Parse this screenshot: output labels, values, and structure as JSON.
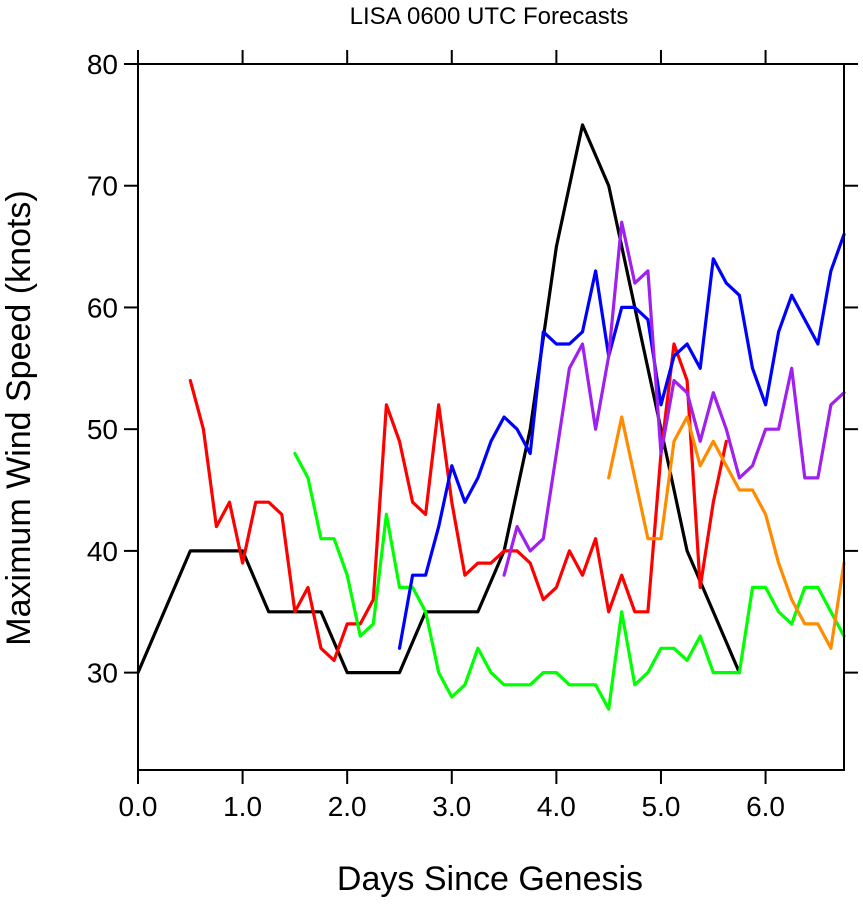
{
  "chart_data": {
    "type": "line",
    "title": "LISA 0600 UTC Forecasts",
    "xlabel": "Days Since Genesis",
    "ylabel": "Maximum Wind Speed (knots)",
    "xlim": [
      0,
      6.75
    ],
    "ylim": [
      22,
      80
    ],
    "xticks": [
      0,
      1,
      2,
      3,
      4,
      5,
      6
    ],
    "xtick_labels": [
      "0.0",
      "1.0",
      "2.0",
      "3.0",
      "4.0",
      "5.0",
      "6.0"
    ],
    "yticks": [
      30,
      40,
      50,
      60,
      70,
      80
    ],
    "ytick_labels": [
      "30",
      "40",
      "50",
      "60",
      "70",
      "80"
    ],
    "grid": false,
    "legend": "none",
    "series": [
      {
        "color": "#000000",
        "points": [
          [
            0,
            30
          ],
          [
            0.5,
            40
          ],
          [
            1,
            40
          ],
          [
            1.25,
            35
          ],
          [
            1.75,
            35
          ],
          [
            2,
            30
          ],
          [
            2.5,
            30
          ],
          [
            2.75,
            35
          ],
          [
            3.25,
            35
          ],
          [
            3.5,
            40
          ],
          [
            3.75,
            50
          ],
          [
            4,
            65
          ],
          [
            4.25,
            75
          ],
          [
            4.5,
            70
          ],
          [
            4.75,
            60
          ],
          [
            5,
            50
          ],
          [
            5.25,
            40
          ],
          [
            5.5,
            35
          ],
          [
            5.75,
            30
          ]
        ]
      },
      {
        "color": "#ff0000",
        "points": [
          [
            0.5,
            54
          ],
          [
            0.625,
            50
          ],
          [
            0.75,
            42
          ],
          [
            0.875,
            44
          ],
          [
            1,
            39
          ],
          [
            1.125,
            44
          ],
          [
            1.25,
            44
          ],
          [
            1.375,
            43
          ],
          [
            1.5,
            35
          ],
          [
            1.625,
            37
          ],
          [
            1.75,
            32
          ],
          [
            1.875,
            31
          ],
          [
            2,
            34
          ],
          [
            2.125,
            34
          ],
          [
            2.25,
            36
          ],
          [
            2.375,
            52
          ],
          [
            2.5,
            49
          ],
          [
            2.625,
            44
          ],
          [
            2.75,
            43
          ],
          [
            2.875,
            52
          ],
          [
            3,
            44
          ],
          [
            3.125,
            38
          ],
          [
            3.25,
            39
          ],
          [
            3.375,
            39
          ],
          [
            3.5,
            40
          ],
          [
            3.625,
            40
          ],
          [
            3.75,
            39
          ],
          [
            3.875,
            36
          ],
          [
            4,
            37
          ],
          [
            4.125,
            40
          ],
          [
            4.25,
            38
          ],
          [
            4.375,
            41
          ],
          [
            4.5,
            35
          ],
          [
            4.625,
            38
          ],
          [
            4.75,
            35
          ],
          [
            4.875,
            35
          ],
          [
            5,
            48
          ],
          [
            5.125,
            57
          ],
          [
            5.25,
            54
          ],
          [
            5.375,
            37
          ],
          [
            5.5,
            44
          ],
          [
            5.625,
            49
          ]
        ]
      },
      {
        "color": "#00ff00",
        "points": [
          [
            1.5,
            48
          ],
          [
            1.625,
            46
          ],
          [
            1.75,
            41
          ],
          [
            1.875,
            41
          ],
          [
            2,
            38
          ],
          [
            2.125,
            33
          ],
          [
            2.25,
            34
          ],
          [
            2.375,
            43
          ],
          [
            2.5,
            37
          ],
          [
            2.625,
            37
          ],
          [
            2.75,
            35
          ],
          [
            2.875,
            30
          ],
          [
            3,
            28
          ],
          [
            3.125,
            29
          ],
          [
            3.25,
            32
          ],
          [
            3.375,
            30
          ],
          [
            3.5,
            29
          ],
          [
            3.625,
            29
          ],
          [
            3.75,
            29
          ],
          [
            3.875,
            30
          ],
          [
            4,
            30
          ],
          [
            4.125,
            29
          ],
          [
            4.25,
            29
          ],
          [
            4.375,
            29
          ],
          [
            4.5,
            27
          ],
          [
            4.625,
            35
          ],
          [
            4.75,
            29
          ],
          [
            4.875,
            30
          ],
          [
            5,
            32
          ],
          [
            5.125,
            32
          ],
          [
            5.25,
            31
          ],
          [
            5.375,
            33
          ],
          [
            5.5,
            30
          ],
          [
            5.625,
            30
          ],
          [
            5.75,
            30
          ],
          [
            5.875,
            37
          ],
          [
            6,
            37
          ],
          [
            6.125,
            35
          ],
          [
            6.25,
            34
          ],
          [
            6.375,
            37
          ],
          [
            6.5,
            37
          ],
          [
            6.625,
            35
          ],
          [
            6.75,
            33
          ]
        ]
      },
      {
        "color": "#0000ff",
        "points": [
          [
            2.5,
            32
          ],
          [
            2.625,
            38
          ],
          [
            2.75,
            38
          ],
          [
            2.875,
            42
          ],
          [
            3,
            47
          ],
          [
            3.125,
            44
          ],
          [
            3.25,
            46
          ],
          [
            3.375,
            49
          ],
          [
            3.5,
            51
          ],
          [
            3.625,
            50
          ],
          [
            3.75,
            48
          ],
          [
            3.875,
            58
          ],
          [
            4,
            57
          ],
          [
            4.125,
            57
          ],
          [
            4.25,
            58
          ],
          [
            4.375,
            63
          ],
          [
            4.5,
            56
          ],
          [
            4.625,
            60
          ],
          [
            4.75,
            60
          ],
          [
            4.875,
            59
          ],
          [
            5,
            52
          ],
          [
            5.125,
            56
          ],
          [
            5.25,
            57
          ],
          [
            5.375,
            55
          ],
          [
            5.5,
            64
          ],
          [
            5.625,
            62
          ],
          [
            5.75,
            61
          ],
          [
            5.875,
            55
          ],
          [
            6,
            52
          ],
          [
            6.125,
            58
          ],
          [
            6.25,
            61
          ],
          [
            6.375,
            59
          ],
          [
            6.5,
            57
          ],
          [
            6.625,
            63
          ],
          [
            6.75,
            66
          ]
        ]
      },
      {
        "color": "#a020f0",
        "points": [
          [
            3.5,
            38
          ],
          [
            3.625,
            42
          ],
          [
            3.75,
            40
          ],
          [
            3.875,
            41
          ],
          [
            4,
            48
          ],
          [
            4.125,
            55
          ],
          [
            4.25,
            57
          ],
          [
            4.375,
            50
          ],
          [
            4.5,
            56
          ],
          [
            4.625,
            67
          ],
          [
            4.75,
            62
          ],
          [
            4.875,
            63
          ],
          [
            5,
            48
          ],
          [
            5.125,
            54
          ],
          [
            5.25,
            53
          ],
          [
            5.375,
            49
          ],
          [
            5.5,
            53
          ],
          [
            5.625,
            50
          ],
          [
            5.75,
            46
          ],
          [
            5.875,
            47
          ],
          [
            6,
            50
          ],
          [
            6.125,
            50
          ],
          [
            6.25,
            55
          ],
          [
            6.375,
            46
          ],
          [
            6.5,
            46
          ],
          [
            6.625,
            52
          ],
          [
            6.75,
            53
          ]
        ]
      },
      {
        "color": "#ff8c00",
        "points": [
          [
            4.5,
            46
          ],
          [
            4.625,
            51
          ],
          [
            4.75,
            46
          ],
          [
            4.875,
            41
          ],
          [
            5,
            41
          ],
          [
            5.125,
            49
          ],
          [
            5.25,
            51
          ],
          [
            5.375,
            47
          ],
          [
            5.5,
            49
          ],
          [
            5.625,
            47
          ],
          [
            5.75,
            45
          ],
          [
            5.875,
            45
          ],
          [
            6,
            43
          ],
          [
            6.125,
            39
          ],
          [
            6.25,
            36
          ],
          [
            6.375,
            34
          ],
          [
            6.5,
            34
          ],
          [
            6.625,
            32
          ],
          [
            6.75,
            39
          ]
        ]
      }
    ]
  }
}
